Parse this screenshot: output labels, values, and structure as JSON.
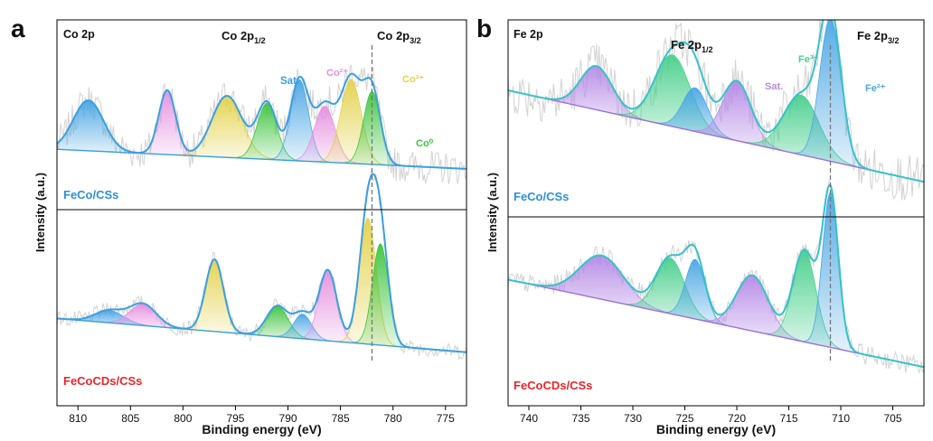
{
  "colors": {
    "co_blue": "#3a9fe0",
    "fe_teal": "#36c2c8",
    "raw": "#d2d2d2",
    "co2": "#e58fe0",
    "co3": "#e3d24a",
    "co0": "#3ec43e",
    "sat": "#4aa6e4",
    "fe2": "#4aa6e4",
    "fe3": "#48cf8c",
    "fe_sat": "#b58ae6",
    "fe_base": "#a070e0",
    "sample_top": "#2c8fd8",
    "sample_bottom": "#e8252b",
    "ref_line": "#777777"
  },
  "chart_data": [
    {
      "panel": "a",
      "type": "line",
      "title": "Co 2p",
      "xlabel": "Binding energy (eV)",
      "ylabel": "Intensity (a.u.)",
      "xlim": [
        812,
        773
      ],
      "x_ticks": [
        810,
        805,
        800,
        795,
        790,
        785,
        780,
        775
      ],
      "reference_line_eV": 782,
      "header_labels": [
        {
          "base": "Co 2p",
          "sub": "1/2"
        },
        {
          "base": "Co 2p",
          "sub": "3/2"
        }
      ],
      "subplots": [
        {
          "sample": "FeCo/CSs",
          "envelope_color_key": "co_blue",
          "baseline": {
            "start": 0.16,
            "end": 0.02
          },
          "peaks": [
            {
              "label": "Sat.",
              "center": 809,
              "height": 0.36,
              "fwhm": 3.4,
              "color_key": "sat"
            },
            {
              "label": "Co²⁺",
              "center": 801.5,
              "height": 0.46,
              "fwhm": 1.9,
              "color_key": "co2"
            },
            {
              "label": "Co³⁺",
              "center": 795.8,
              "height": 0.44,
              "fwhm": 3.4,
              "color_key": "co3"
            },
            {
              "label": "Co⁰",
              "center": 792,
              "height": 0.4,
              "fwhm": 2.2,
              "color_key": "co0"
            },
            {
              "label": "Sat.",
              "center": 788.9,
              "height": 0.58,
              "fwhm": 2.0,
              "color_key": "sat"
            },
            {
              "label": "Co²⁺",
              "center": 786.5,
              "height": 0.4,
              "fwhm": 2.3,
              "color_key": "co2"
            },
            {
              "label": "Co³⁺",
              "center": 784,
              "height": 0.6,
              "fwhm": 2.3,
              "color_key": "co3"
            },
            {
              "label": "Co⁰",
              "center": 782,
              "height": 0.52,
              "fwhm": 1.9,
              "color_key": "co0"
            }
          ],
          "peak_labels": [
            {
              "text": "Sat.",
              "color_key": "sat"
            },
            {
              "text": "Co²⁺",
              "color_key": "co2"
            },
            {
              "text": "Co³⁺",
              "color_key": "co3"
            },
            {
              "text": "Co⁰",
              "color_key": "co0"
            }
          ]
        },
        {
          "sample": "FeCoCDs/CSs",
          "envelope_color_key": "co_blue",
          "baseline": {
            "start": 0.28,
            "end": 0.06
          },
          "peaks": [
            {
              "label": "Sat.",
              "center": 807,
              "height": 0.08,
              "fwhm": 3.2,
              "color_key": "sat"
            },
            {
              "label": "Co²⁺",
              "center": 803.8,
              "height": 0.14,
              "fwhm": 3.0,
              "color_key": "co2"
            },
            {
              "label": "Co³⁺",
              "center": 797,
              "height": 0.47,
              "fwhm": 2.0,
              "color_key": "co3"
            },
            {
              "label": "Co⁰",
              "center": 791,
              "height": 0.2,
              "fwhm": 2.4,
              "color_key": "co0"
            },
            {
              "label": "Sat.",
              "center": 788.6,
              "height": 0.16,
              "fwhm": 2.0,
              "color_key": "sat"
            },
            {
              "label": "Co²⁺",
              "center": 786.2,
              "height": 0.46,
              "fwhm": 2.0,
              "color_key": "co2"
            },
            {
              "label": "Co³⁺",
              "center": 782.4,
              "height": 0.82,
              "fwhm": 1.9,
              "color_key": "co3"
            },
            {
              "label": "Co⁰",
              "center": 781.2,
              "height": 0.66,
              "fwhm": 1.8,
              "color_key": "co0"
            }
          ]
        }
      ]
    },
    {
      "panel": "b",
      "type": "line",
      "title": "Fe 2p",
      "xlabel": "Binding energy (eV)",
      "ylabel": "Intensity (a.u.)",
      "xlim": [
        742,
        702
      ],
      "x_ticks": [
        740,
        735,
        730,
        725,
        720,
        715,
        710,
        705
      ],
      "reference_line_eV": 711,
      "header_labels": [
        {
          "base": "Fe 2p",
          "sub": "1/2"
        },
        {
          "base": "Fe 2p",
          "sub": "3/2"
        }
      ],
      "subplots": [
        {
          "sample": "FeCo/CSs",
          "envelope_color_key": "fe_teal",
          "baseline": {
            "start": 0.5,
            "end": 0.04
          },
          "peaks": [
            {
              "label": "Sat.",
              "center": 733.5,
              "height": 0.22,
              "fwhm": 3.6,
              "color_key": "fe_sat"
            },
            {
              "label": "Fe³⁺",
              "center": 726.2,
              "height": 0.36,
              "fwhm": 4.0,
              "color_key": "fe3"
            },
            {
              "label": "Fe²⁺",
              "center": 724,
              "height": 0.22,
              "fwhm": 2.8,
              "color_key": "fe2"
            },
            {
              "label": "Sat.",
              "center": 720,
              "height": 0.3,
              "fwhm": 3.2,
              "color_key": "fe_sat"
            },
            {
              "label": "Fe³⁺",
              "center": 713.8,
              "height": 0.3,
              "fwhm": 4.0,
              "color_key": "fe3"
            },
            {
              "label": "Fe²⁺",
              "center": 711,
              "height": 0.72,
              "fwhm": 2.4,
              "color_key": "fe2"
            }
          ],
          "peak_labels": [
            {
              "text": "Fe³⁺",
              "color_key": "fe3"
            },
            {
              "text": "Sat.",
              "color_key": "fe_sat"
            },
            {
              "text": "Fe²⁺",
              "color_key": "fe2"
            }
          ]
        },
        {
          "sample": "FeCoCDs/CSs",
          "envelope_color_key": "fe_teal",
          "baseline": {
            "start": 0.48,
            "end": 0.04
          },
          "peaks": [
            {
              "label": "Sat.",
              "center": 733,
              "height": 0.22,
              "fwhm": 5.0,
              "color_key": "fe_sat"
            },
            {
              "label": "Fe³⁺",
              "center": 726.4,
              "height": 0.28,
              "fwhm": 3.2,
              "color_key": "fe3"
            },
            {
              "label": "Fe²⁺",
              "center": 724,
              "height": 0.3,
              "fwhm": 2.2,
              "color_key": "fe2"
            },
            {
              "label": "Sat.",
              "center": 718.5,
              "height": 0.28,
              "fwhm": 3.6,
              "color_key": "fe_sat"
            },
            {
              "label": "Fe³⁺",
              "center": 713.5,
              "height": 0.46,
              "fwhm": 2.6,
              "color_key": "fe3"
            },
            {
              "label": "Fe²⁺",
              "center": 711,
              "height": 0.78,
              "fwhm": 1.8,
              "color_key": "fe2"
            }
          ]
        }
      ]
    }
  ]
}
